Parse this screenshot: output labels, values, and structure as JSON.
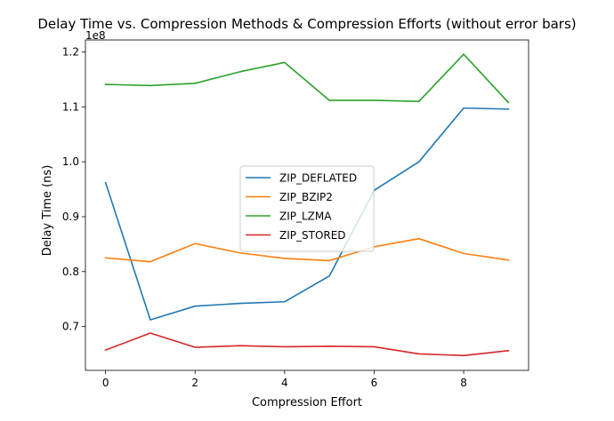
{
  "chart_data": {
    "type": "line",
    "title": "Delay Time vs. Compression Methods & Compression Efforts (without error bars)",
    "xlabel": "Compression Effort",
    "ylabel": "Delay Time (ns)",
    "y_offset_label": "1e8",
    "xlim": [
      -0.45,
      9.45
    ],
    "ylim": [
      0.62,
      1.222
    ],
    "x_ticks": [
      0,
      2,
      4,
      6,
      8
    ],
    "x_tick_labels": [
      "0",
      "2",
      "4",
      "6",
      "8"
    ],
    "y_ticks": [
      0.7,
      0.8,
      0.9,
      1.0,
      1.1,
      1.2
    ],
    "y_tick_labels": [
      "0.7",
      "0.8",
      "0.9",
      "1.0",
      "1.1",
      "1.2"
    ],
    "grid": false,
    "legend_position": "center",
    "x": [
      0,
      1,
      2,
      3,
      4,
      5,
      6,
      7,
      8,
      9
    ],
    "series": [
      {
        "name": "ZIP_DEFLATED",
        "color": "#1f77b4",
        "values": [
          0.962,
          0.712,
          0.737,
          0.742,
          0.745,
          0.792,
          0.948,
          1.0,
          1.098,
          1.096
        ]
      },
      {
        "name": "ZIP_BZIP2",
        "color": "#ff7f0e",
        "values": [
          0.825,
          0.818,
          0.851,
          0.834,
          0.824,
          0.82,
          0.845,
          0.86,
          0.833,
          0.821
        ]
      },
      {
        "name": "ZIP_LZMA",
        "color": "#2ca02c",
        "values": [
          1.141,
          1.139,
          1.143,
          1.164,
          1.181,
          1.112,
          1.112,
          1.11,
          1.196,
          1.108
        ]
      },
      {
        "name": "ZIP_STORED",
        "color": "#d62728",
        "values": [
          0.657,
          0.688,
          0.662,
          0.665,
          0.663,
          0.664,
          0.663,
          0.65,
          0.647,
          0.656
        ]
      }
    ]
  }
}
